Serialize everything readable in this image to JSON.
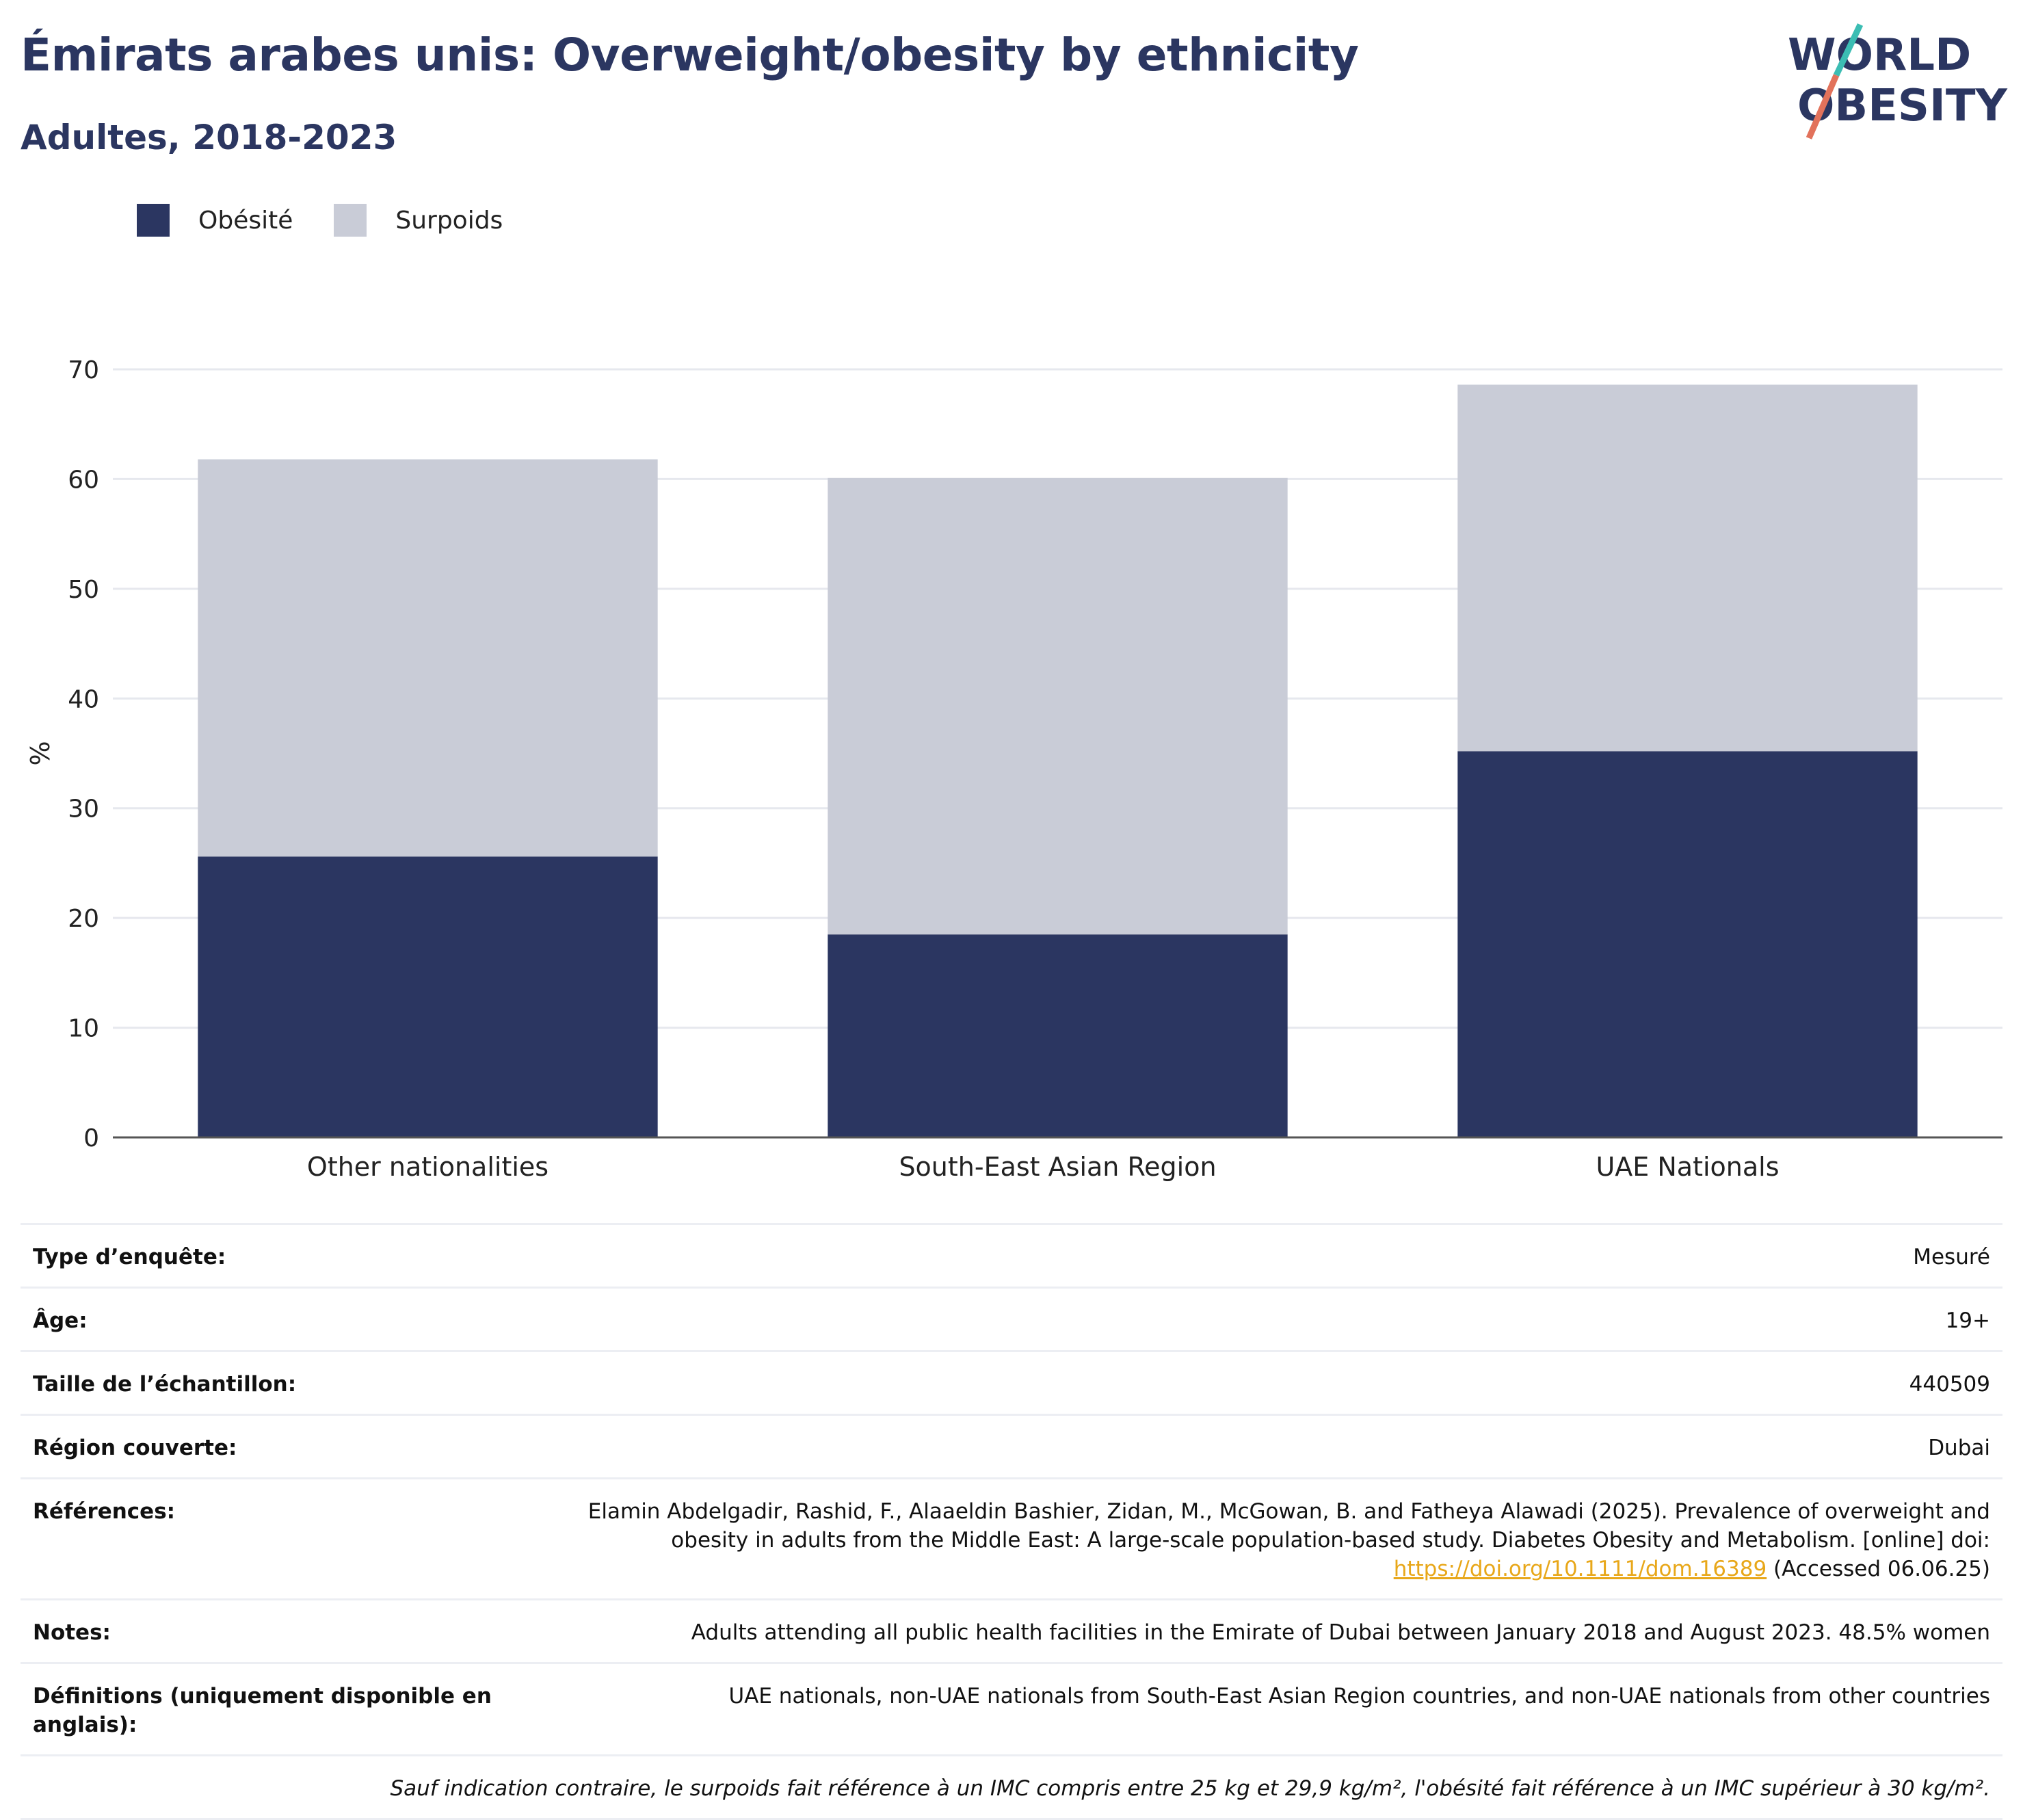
{
  "header": {
    "title": "Émirats arabes unis: Overweight/obesity by ethnicity",
    "subtitle": "Adultes, 2018-2023",
    "logo_line1": "WORLD",
    "logo_line2": "OBESITY"
  },
  "legend": [
    {
      "label": "Obésité",
      "color": "#2b3661"
    },
    {
      "label": "Surpoids",
      "color": "#c9ccd7"
    }
  ],
  "chart_data": {
    "type": "bar",
    "stacked": true,
    "categories": [
      "Other nationalities",
      "South-East Asian Region",
      "UAE Nationals"
    ],
    "series": [
      {
        "name": "Obésité",
        "values": [
          25.6,
          18.5,
          35.2
        ],
        "color": "#2b3661"
      },
      {
        "name": "Surpoids",
        "values": [
          36.2,
          41.6,
          33.4
        ],
        "color": "#c9ccd7"
      }
    ],
    "ylabel": "%",
    "ylim": [
      0,
      70
    ],
    "yticks": [
      0,
      10,
      20,
      30,
      40,
      50,
      60,
      70
    ],
    "grid": true
  },
  "details": {
    "survey_type": {
      "label": "Type d’enquête:",
      "value": "Mesuré"
    },
    "age": {
      "label": "Âge:",
      "value": "19+"
    },
    "sample_size": {
      "label": "Taille de l’échantillon:",
      "value": "440509"
    },
    "region": {
      "label": "Région couverte:",
      "value": "Dubai"
    },
    "references": {
      "label": "Références:",
      "text1": "Elamin Abdelgadir, Rashid, F., Alaaeldin Bashier, Zidan, M., McGowan, B. and Fatheya Alawadi (2025). Prevalence of overweight and obesity in adults from the Middle East: A large-scale population-based study. Diabetes Obesity and Metabolism. [online] doi:",
      "link": "https://doi.org/10.1111/dom.16389",
      "text2": "(Accessed 06.06.25)"
    },
    "notes": {
      "label": "Notes:",
      "value": "Adults attending all public health facilities in the Emirate of Dubai between January 2018 and August 2023. 48.5% women"
    },
    "definitions": {
      "label": "Définitions (uniquement disponible en anglais):",
      "value": "UAE nationals, non-UAE nationals from South-East Asian Region countries, and non-UAE nationals from other countries"
    },
    "footnote": "Sauf indication contraire, le surpoids fait référence à un IMC compris entre 25 kg et 29,9 kg/m², l'obésité fait référence à un IMC supérieur à 30 kg/m²."
  }
}
